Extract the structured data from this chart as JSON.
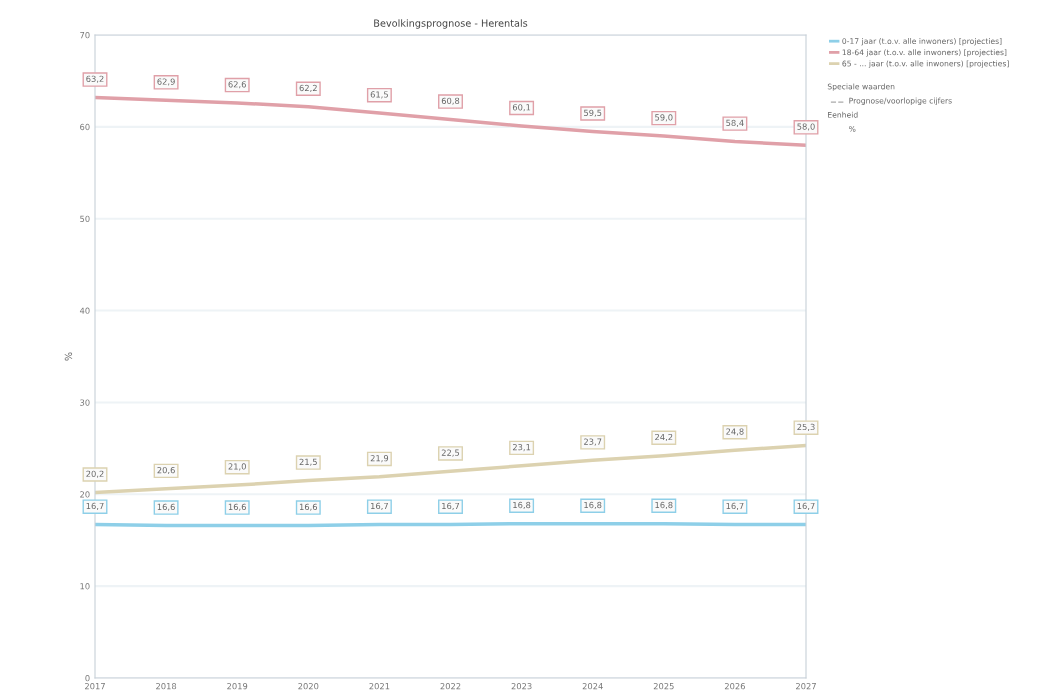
{
  "chart_data": {
    "type": "line",
    "title": "Bevolkingsprognose - Herentals",
    "ylabel": "%",
    "x": [
      2017,
      2018,
      2019,
      2020,
      2021,
      2022,
      2023,
      2024,
      2025,
      2026,
      2027
    ],
    "series": [
      {
        "name": "0-17 jaar (t.o.v. alle inwoners) [projecties]",
        "color": "#8ecfe8",
        "values": [
          16.7,
          16.6,
          16.6,
          16.6,
          16.7,
          16.7,
          16.8,
          16.8,
          16.8,
          16.7,
          16.7
        ],
        "value_labels": [
          "16,7",
          "16,6",
          "16,6",
          "16,6",
          "16,7",
          "16,7",
          "16,8",
          "16,8",
          "16,8",
          "16,7",
          "16,7"
        ]
      },
      {
        "name": "18-64 jaar (t.o.v. alle inwoners) [projecties]",
        "color": "#e0a0a8",
        "values": [
          63.2,
          62.9,
          62.6,
          62.2,
          61.5,
          60.8,
          60.1,
          59.5,
          59.0,
          58.4,
          58.0
        ],
        "value_labels": [
          "63,2",
          "62,9",
          "62,6",
          "62,2",
          "61,5",
          "60,8",
          "60,1",
          "59,5",
          "59,0",
          "58,4",
          "58,0"
        ]
      },
      {
        "name": "65 - ... jaar (t.o.v. alle inwoners) [projecties]",
        "color": "#dcd2b0",
        "values": [
          20.2,
          20.6,
          21.0,
          21.5,
          21.9,
          22.5,
          23.1,
          23.7,
          24.2,
          24.8,
          25.3
        ],
        "value_labels": [
          "20,2",
          "20,6",
          "21,0",
          "21,5",
          "21,9",
          "22,5",
          "23,1",
          "23,7",
          "24,2",
          "24,8",
          "25,3"
        ]
      }
    ],
    "xlim": [
      2017,
      2027
    ],
    "xticks": [
      2017,
      2018,
      2019,
      2020,
      2021,
      2022,
      2023,
      2024,
      2025,
      2026,
      2027
    ],
    "ylim": [
      0,
      70
    ],
    "yticks": [
      0,
      10,
      20,
      30,
      40,
      50,
      60,
      70
    ],
    "grid": "y",
    "legend": "top right",
    "marker": "none",
    "line_style": "solid",
    "annotations": [
      "Speciale waarden",
      "Prognose/voorlopige cijfers",
      "Eenheid",
      "%"
    ]
  }
}
